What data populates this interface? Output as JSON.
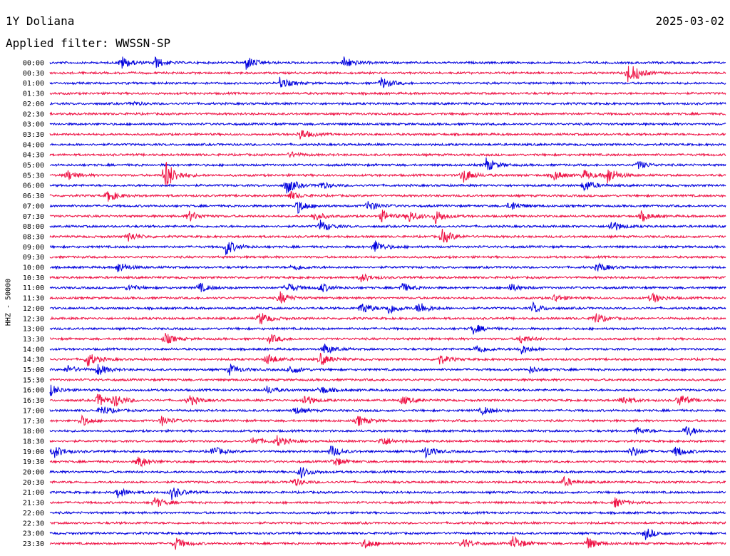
{
  "header": {
    "station": "1Y Doliana",
    "date": "2025-03-02",
    "filter_text": "Applied filter: WWSSN-SP"
  },
  "chart_data": {
    "type": "helicorder",
    "ylabel": "HHZ - 50000",
    "interval_minutes": 30,
    "colors": [
      "#0000dd",
      "#ee1144"
    ],
    "rows": [
      {
        "label": "00:00",
        "events": [
          [
            0.105,
            10
          ],
          [
            0.155,
            8
          ],
          [
            0.29,
            10
          ],
          [
            0.435,
            9
          ]
        ]
      },
      {
        "label": "00:30",
        "events": [
          [
            0.855,
            14
          ],
          [
            0.865,
            4
          ]
        ]
      },
      {
        "label": "01:00",
        "events": [
          [
            0.34,
            8
          ],
          [
            0.49,
            9
          ]
        ]
      },
      {
        "label": "01:30",
        "events": []
      },
      {
        "label": "02:00",
        "events": [
          [
            0.12,
            3
          ]
        ]
      },
      {
        "label": "02:30",
        "events": []
      },
      {
        "label": "03:00",
        "events": []
      },
      {
        "label": "03:30",
        "events": [
          [
            0.37,
            8
          ]
        ]
      },
      {
        "label": "04:00",
        "events": []
      },
      {
        "label": "04:30",
        "events": [
          [
            0.355,
            4
          ]
        ]
      },
      {
        "label": "05:00",
        "events": [
          [
            0.645,
            10
          ],
          [
            0.87,
            6
          ]
        ]
      },
      {
        "label": "05:30",
        "events": [
          [
            0.025,
            8
          ],
          [
            0.17,
            24
          ],
          [
            0.61,
            12
          ],
          [
            0.745,
            7
          ],
          [
            0.79,
            7
          ],
          [
            0.825,
            12
          ]
        ]
      },
      {
        "label": "06:00",
        "events": [
          [
            0.35,
            12
          ],
          [
            0.4,
            5
          ],
          [
            0.79,
            9
          ]
        ]
      },
      {
        "label": "06:30",
        "events": [
          [
            0.085,
            9
          ],
          [
            0.355,
            6
          ]
        ]
      },
      {
        "label": "07:00",
        "events": [
          [
            0.365,
            11
          ],
          [
            0.47,
            8
          ],
          [
            0.68,
            8
          ]
        ]
      },
      {
        "label": "07:30",
        "events": [
          [
            0.205,
            8
          ],
          [
            0.39,
            7
          ],
          [
            0.49,
            9
          ],
          [
            0.53,
            9
          ],
          [
            0.57,
            10
          ],
          [
            0.875,
            7
          ]
        ]
      },
      {
        "label": "08:00",
        "events": [
          [
            0.4,
            9
          ],
          [
            0.83,
            9
          ]
        ]
      },
      {
        "label": "08:30",
        "events": [
          [
            0.115,
            7
          ],
          [
            0.58,
            11
          ]
        ]
      },
      {
        "label": "09:00",
        "events": [
          [
            0.26,
            12
          ],
          [
            0.48,
            10
          ]
        ]
      },
      {
        "label": "09:30",
        "events": []
      },
      {
        "label": "10:00",
        "events": [
          [
            0.1,
            8
          ],
          [
            0.36,
            5
          ],
          [
            0.81,
            7
          ]
        ]
      },
      {
        "label": "10:30",
        "events": [
          [
            0.46,
            6
          ]
        ]
      },
      {
        "label": "11:00",
        "events": [
          [
            0.115,
            5
          ],
          [
            0.22,
            7
          ],
          [
            0.35,
            8
          ],
          [
            0.4,
            7
          ],
          [
            0.52,
            7
          ],
          [
            0.68,
            6
          ]
        ]
      },
      {
        "label": "11:30",
        "events": [
          [
            0.34,
            9
          ],
          [
            0.745,
            6
          ],
          [
            0.89,
            8
          ]
        ]
      },
      {
        "label": "12:00",
        "events": [
          [
            0.46,
            10
          ],
          [
            0.5,
            9
          ],
          [
            0.545,
            10
          ],
          [
            0.715,
            7
          ]
        ]
      },
      {
        "label": "12:30",
        "events": [
          [
            0.31,
            10
          ],
          [
            0.805,
            9
          ]
        ]
      },
      {
        "label": "13:00",
        "events": [
          [
            0.625,
            8
          ]
        ]
      },
      {
        "label": "13:30",
        "events": [
          [
            0.17,
            8
          ],
          [
            0.325,
            7
          ],
          [
            0.695,
            7
          ]
        ]
      },
      {
        "label": "14:00",
        "events": [
          [
            0.405,
            8
          ],
          [
            0.63,
            8
          ],
          [
            0.695,
            8
          ]
        ]
      },
      {
        "label": "14:30",
        "events": [
          [
            0.055,
            11
          ],
          [
            0.32,
            9
          ],
          [
            0.4,
            9
          ],
          [
            0.575,
            8
          ]
        ]
      },
      {
        "label": "15:00",
        "events": [
          [
            0.025,
            6
          ],
          [
            0.07,
            9
          ],
          [
            0.265,
            8
          ],
          [
            0.355,
            7
          ],
          [
            0.71,
            5
          ]
        ]
      },
      {
        "label": "15:30",
        "events": []
      },
      {
        "label": "16:00",
        "events": [
          [
            0.0,
            8
          ],
          [
            0.32,
            6
          ],
          [
            0.4,
            6
          ]
        ]
      },
      {
        "label": "16:30",
        "events": [
          [
            0.07,
            10
          ],
          [
            0.095,
            9
          ],
          [
            0.205,
            8
          ],
          [
            0.375,
            9
          ],
          [
            0.52,
            7
          ],
          [
            0.845,
            8
          ],
          [
            0.93,
            10
          ]
        ]
      },
      {
        "label": "17:00",
        "events": [
          [
            0.075,
            8
          ],
          [
            0.36,
            6
          ],
          [
            0.64,
            6
          ]
        ]
      },
      {
        "label": "17:30",
        "events": [
          [
            0.045,
            8
          ],
          [
            0.165,
            7
          ],
          [
            0.455,
            8
          ]
        ]
      },
      {
        "label": "18:00",
        "events": [
          [
            0.865,
            6
          ],
          [
            0.94,
            9
          ]
        ]
      },
      {
        "label": "18:30",
        "events": [
          [
            0.3,
            6
          ],
          [
            0.335,
            8
          ],
          [
            0.49,
            8
          ]
        ]
      },
      {
        "label": "19:00",
        "events": [
          [
            0.005,
            10
          ],
          [
            0.24,
            8
          ],
          [
            0.415,
            9
          ],
          [
            0.555,
            9
          ],
          [
            0.86,
            8
          ],
          [
            0.925,
            9
          ]
        ]
      },
      {
        "label": "19:30",
        "events": [
          [
            0.13,
            10
          ],
          [
            0.42,
            7
          ]
        ]
      },
      {
        "label": "20:00",
        "events": [
          [
            0.37,
            9
          ]
        ]
      },
      {
        "label": "20:30",
        "events": [
          [
            0.36,
            6
          ],
          [
            0.76,
            7
          ]
        ]
      },
      {
        "label": "21:00",
        "events": [
          [
            0.1,
            8
          ],
          [
            0.18,
            10
          ]
        ]
      },
      {
        "label": "21:30",
        "events": [
          [
            0.155,
            8
          ],
          [
            0.835,
            7
          ]
        ]
      },
      {
        "label": "22:00",
        "events": []
      },
      {
        "label": "22:30",
        "events": []
      },
      {
        "label": "23:00",
        "events": [
          [
            0.88,
            9
          ]
        ]
      },
      {
        "label": "23:30",
        "events": [
          [
            0.185,
            9
          ],
          [
            0.465,
            8
          ],
          [
            0.61,
            8
          ],
          [
            0.685,
            11
          ],
          [
            0.795,
            9
          ]
        ]
      }
    ]
  }
}
